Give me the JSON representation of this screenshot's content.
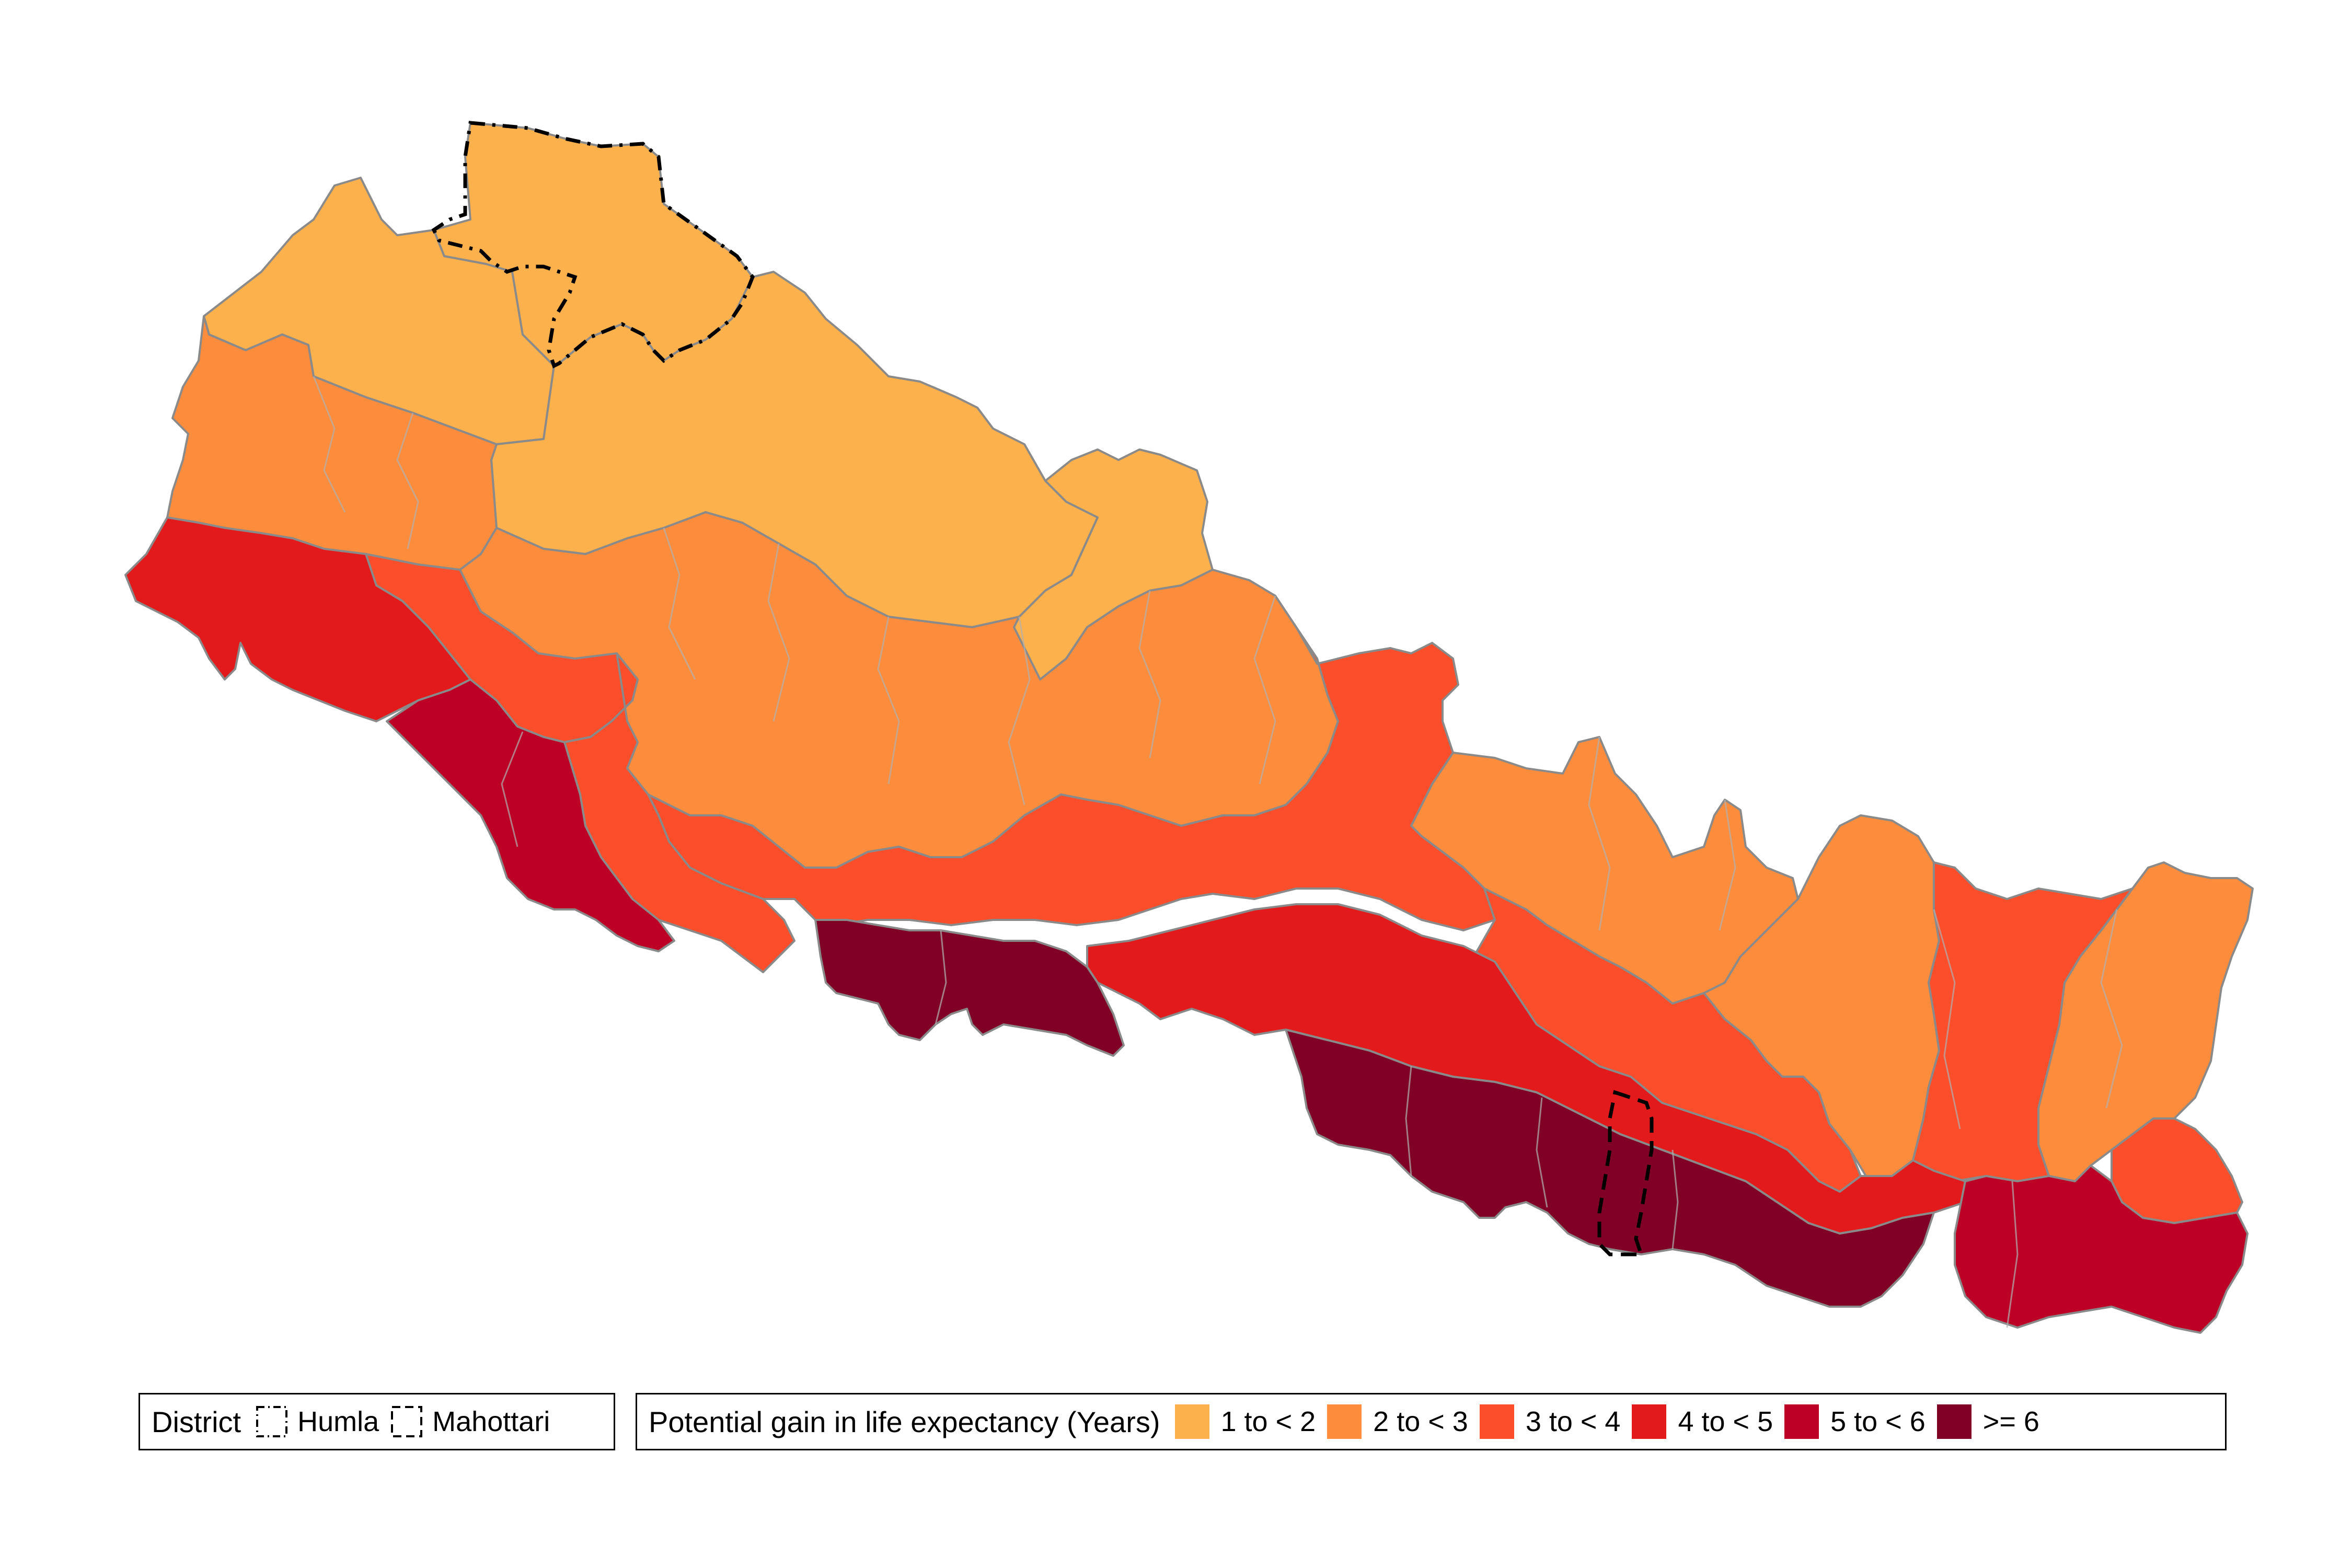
{
  "legend_district": {
    "title": "District",
    "items": [
      {
        "label": "Humla",
        "line": "dotdash"
      },
      {
        "label": "Mahottari",
        "line": "dashed"
      }
    ]
  },
  "legend_gain": {
    "title": "Potential gain in life expectancy (Years)",
    "bins": [
      {
        "label": "1 to < 2",
        "color": "#FDB14D"
      },
      {
        "label": "2 to < 3",
        "color": "#FD8D3C"
      },
      {
        "label": "3 to < 4",
        "color": "#FC4E2A"
      },
      {
        "label": "4 to < 5",
        "color": "#E31A1C"
      },
      {
        "label": "5 to < 6",
        "color": "#BD0026"
      },
      {
        "label": ">= 6",
        "color": "#800026"
      }
    ]
  },
  "colors": {
    "border": "#8a8a8a",
    "highlight": "#000000"
  }
}
